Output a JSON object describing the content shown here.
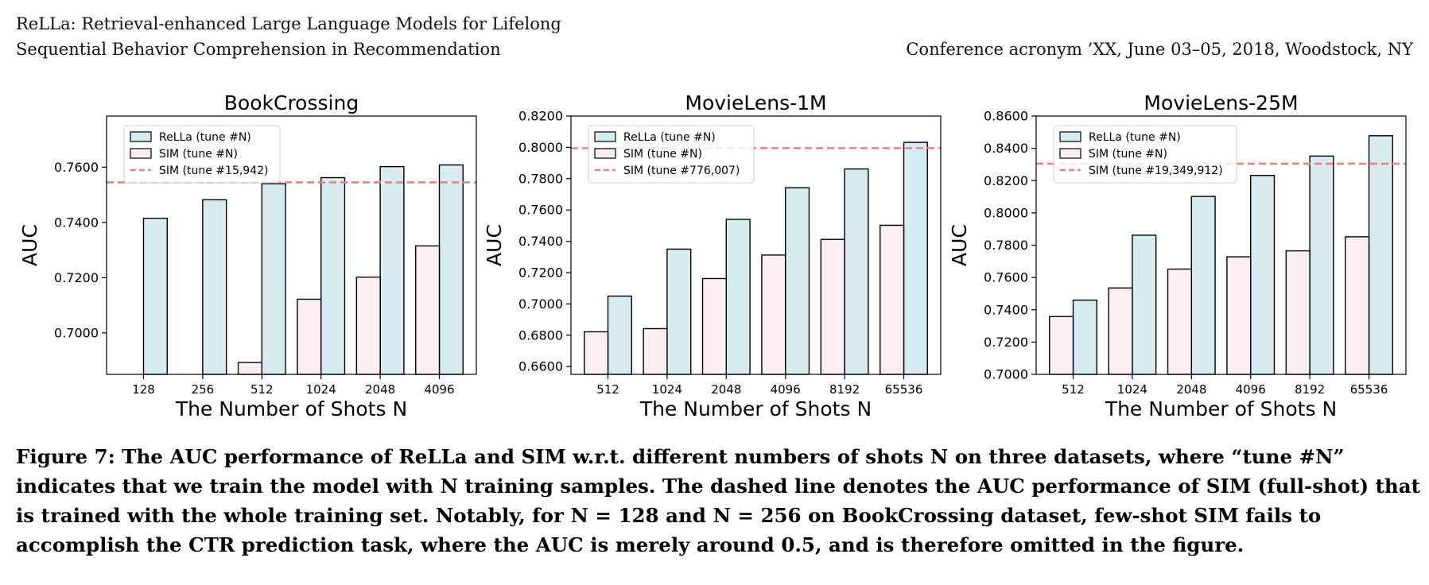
{
  "header": {
    "paper_title_line1": "ReLLa: Retrieval-enhanced Large Language Models for Lifelong",
    "paper_title_line2": "Sequential Behavior Comprehension in Recommendation",
    "conference": "Conference acronym ’XX, June 03–05, 2018, Woodstock, NY"
  },
  "caption": "Figure 7: The AUC performance of ReLLa and SIM w.r.t. different numbers of shots N on three datasets, where “tune #N” indicates that we train the model with N training samples. The dashed line denotes the AUC performance of SIM (full-shot) that is trained with the whole training set. Notably, for N = 128 and N = 256 on BookCrossing dataset, few-shot SIM fails to accomplish the CTR prediction task, where the AUC is merely around 0.5, and is therefore omitted in the figure.",
  "colors": {
    "rella": "#d6ecf0",
    "sim": "#fdeef2",
    "dashed": "#f08080",
    "edge": "#000000"
  },
  "chart_data": [
    {
      "type": "bar",
      "title": "BookCrossing",
      "xlabel": "The Number of Shots N",
      "ylabel": "AUC",
      "categories": [
        "128",
        "256",
        "512",
        "1024",
        "2048",
        "4096"
      ],
      "ylim": [
        0.685,
        0.7785
      ],
      "yticks": [
        0.7,
        0.72,
        0.74,
        0.76
      ],
      "ytick_labels": [
        "0.7000",
        "0.7200",
        "0.7400",
        "0.7600"
      ],
      "series": [
        {
          "name": "ReLLa (tune #N)",
          "values": [
            0.7415,
            0.7482,
            0.754,
            0.7562,
            0.7602,
            0.7608
          ]
        },
        {
          "name": "SIM (tune #N)",
          "values": [
            null,
            null,
            0.6893,
            0.7122,
            0.7202,
            0.7315
          ]
        }
      ],
      "reference_line": {
        "name": "SIM (tune #15,942)",
        "value": 0.7545
      },
      "legend": "top-left"
    },
    {
      "type": "bar",
      "title": "MovieLens-1M",
      "xlabel": "The Number of Shots N",
      "ylabel": "AUC",
      "categories": [
        "512",
        "1024",
        "2048",
        "4096",
        "8192",
        "65536"
      ],
      "ylim": [
        0.655,
        0.82
      ],
      "yticks": [
        0.66,
        0.68,
        0.7,
        0.72,
        0.74,
        0.76,
        0.78,
        0.8,
        0.82
      ],
      "ytick_labels": [
        "0.6600",
        "0.6800",
        "0.7000",
        "0.7200",
        "0.7400",
        "0.7600",
        "0.7800",
        "0.8000",
        "0.8200"
      ],
      "series": [
        {
          "name": "ReLLa (tune #N)",
          "values": [
            0.705,
            0.735,
            0.754,
            0.7742,
            0.7862,
            0.8032
          ]
        },
        {
          "name": "SIM (tune #N)",
          "values": [
            0.6822,
            0.6842,
            0.7162,
            0.7312,
            0.7412,
            0.7502
          ]
        }
      ],
      "reference_line": {
        "name": "SIM (tune #776,007)",
        "value": 0.7995
      },
      "legend": "top-left"
    },
    {
      "type": "bar",
      "title": "MovieLens-25M",
      "xlabel": "The Number of Shots N",
      "ylabel": "AUC",
      "categories": [
        "512",
        "1024",
        "2048",
        "4096",
        "8192",
        "65536"
      ],
      "ylim": [
        0.7,
        0.86
      ],
      "yticks": [
        0.7,
        0.72,
        0.74,
        0.76,
        0.78,
        0.8,
        0.82,
        0.84,
        0.86
      ],
      "ytick_labels": [
        "0.7000",
        "0.7200",
        "0.7400",
        "0.7600",
        "0.7800",
        "0.8000",
        "0.8200",
        "0.8400",
        "0.8600"
      ],
      "series": [
        {
          "name": "ReLLa (tune #N)",
          "values": [
            0.746,
            0.7862,
            0.8102,
            0.8232,
            0.8352,
            0.8478
          ]
        },
        {
          "name": "SIM (tune #N)",
          "values": [
            0.7358,
            0.7535,
            0.7652,
            0.7728,
            0.7765,
            0.7852
          ]
        }
      ],
      "reference_line": {
        "name": "SIM (tune #19,349,912)",
        "value": 0.8305
      },
      "legend": "top-left"
    }
  ]
}
